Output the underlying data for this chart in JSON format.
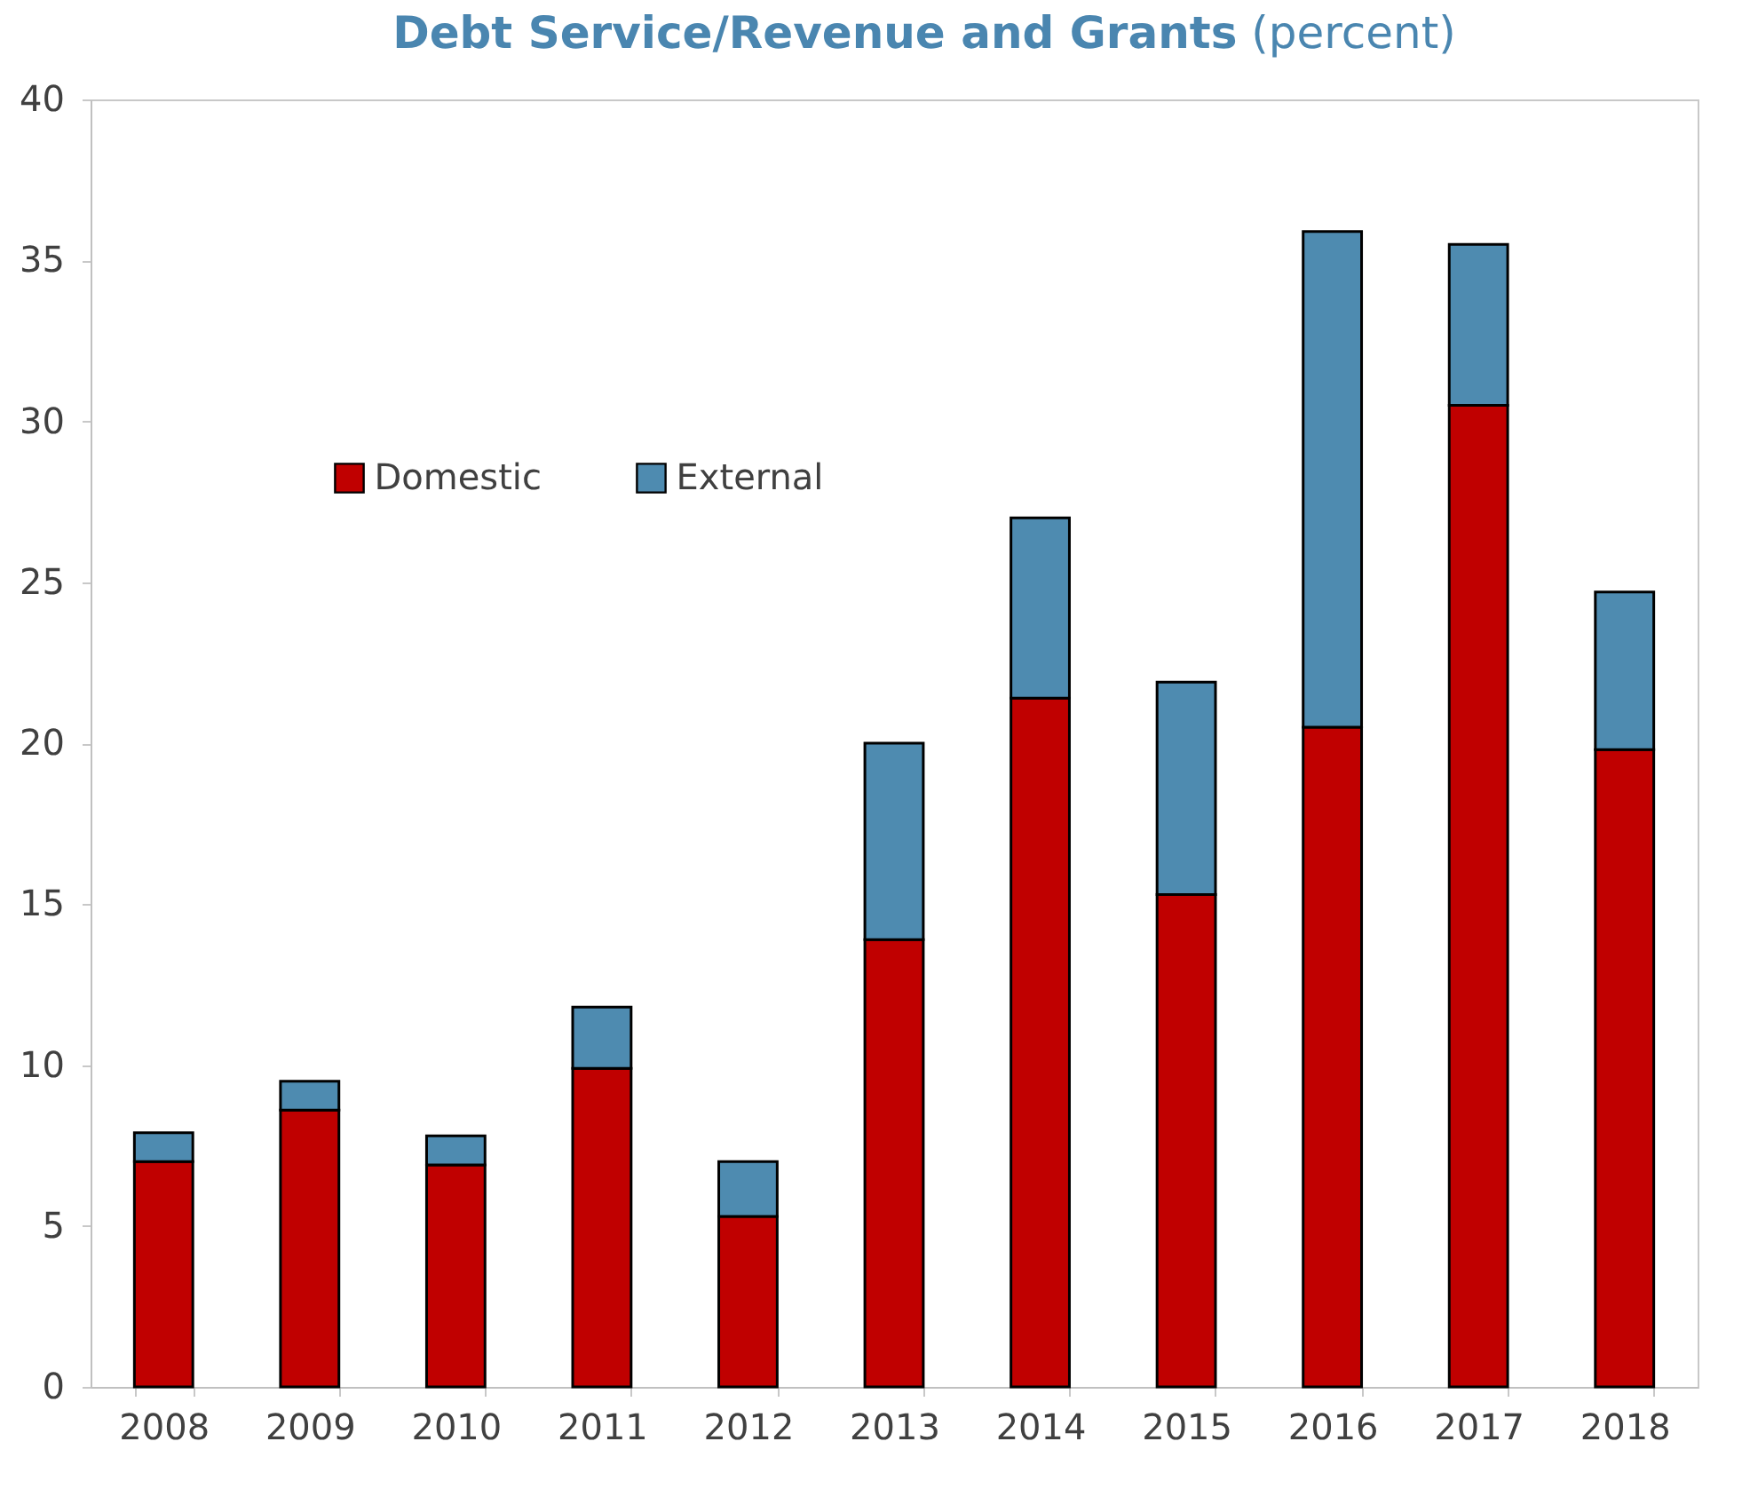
{
  "chart_data": {
    "type": "bar",
    "title": "Debt Service/Revenue and Grants",
    "subtitle": "(percent)",
    "categories": [
      "2008",
      "2009",
      "2010",
      "2011",
      "2012",
      "2013",
      "2014",
      "2015",
      "2016",
      "2017",
      "2018"
    ],
    "stacked": true,
    "series": [
      {
        "name": "Domestic",
        "color": "#c00000",
        "values": [
          7.0,
          8.6,
          6.9,
          9.9,
          5.3,
          13.9,
          21.4,
          15.3,
          20.5,
          30.5,
          19.8
        ]
      },
      {
        "name": "External",
        "color": "#4e8bb0",
        "values": [
          0.9,
          0.9,
          0.9,
          1.9,
          1.7,
          6.1,
          5.6,
          6.6,
          15.4,
          5.0,
          4.9
        ]
      }
    ],
    "ylim": [
      0,
      40
    ],
    "yticks": [
      0,
      5,
      10,
      15,
      20,
      25,
      30,
      35,
      40
    ],
    "grid": false,
    "legend": "top left"
  }
}
